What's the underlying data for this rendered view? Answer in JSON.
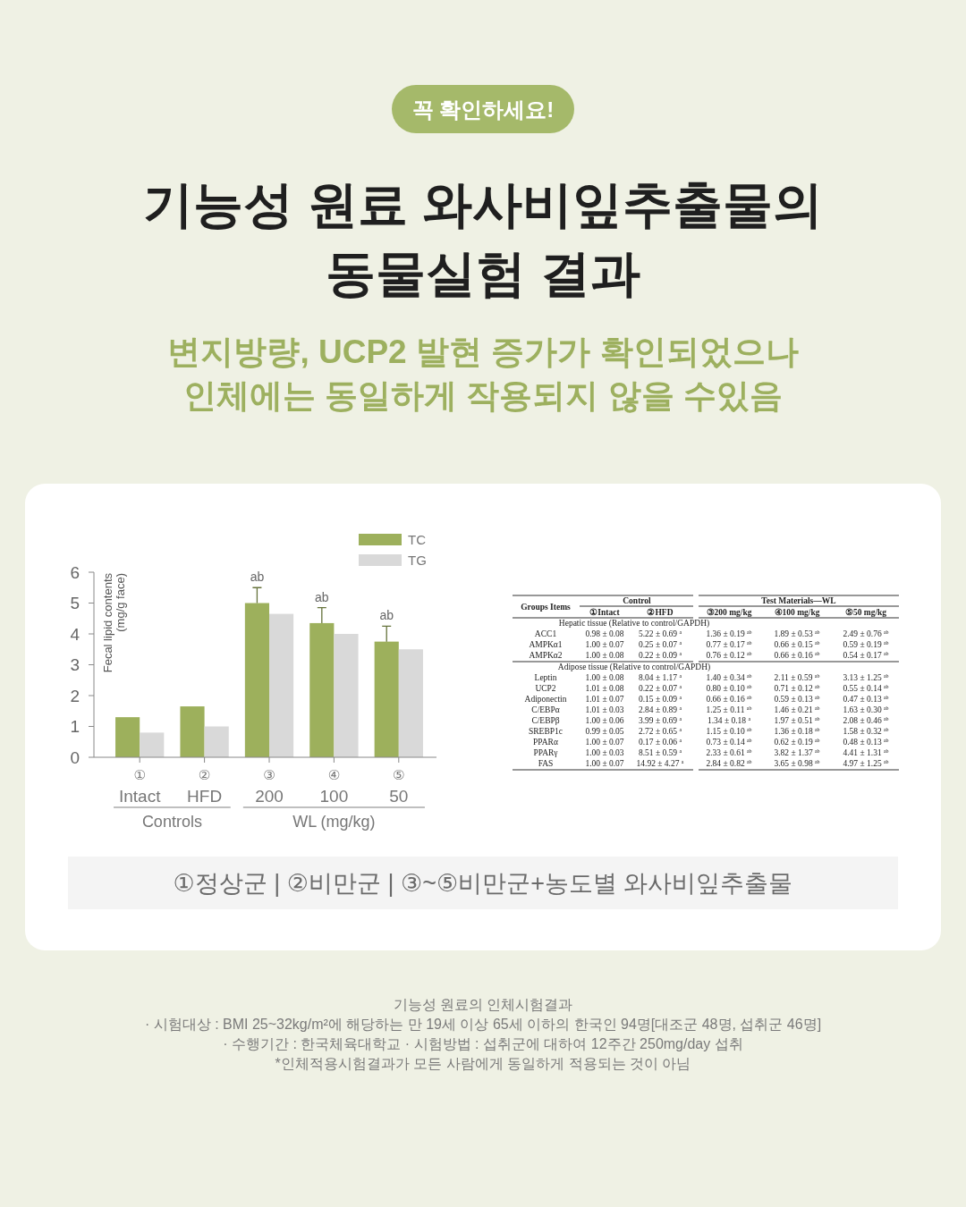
{
  "chart_data": [
    {
      "type": "bar",
      "title": "기능성 원료 와사비잎추출물의\n동물실험 결과",
      "subtitle": "변지방량, UCP2 발현 증가가 확인되었으나\n인체에는 동일하게 작용되지 않을 수있음",
      "ylabel": "Fecal lipid contents\n(mg/g face)",
      "categories": [
        "①\nIntact",
        "②\nHFD",
        "③\n200",
        "④\n100",
        "⑤\n50"
      ],
      "series": [
        {
          "name": "TC",
          "color": "#9db05c",
          "values": [
            1.3,
            1.65,
            5.0,
            4.35,
            3.75
          ],
          "errors": [
            null,
            null,
            [
              5.0,
              5.5
            ],
            [
              4.35,
              4.85
            ],
            [
              3.75,
              4.25
            ]
          ]
        },
        {
          "name": "TG",
          "color": "#d9d9d9",
          "values": [
            0.8,
            1.0,
            4.65,
            4.0,
            3.5
          ]
        }
      ],
      "ylim": [
        0,
        6
      ],
      "yticks": [
        0,
        1,
        2,
        3,
        4,
        5,
        6
      ],
      "legend": "top right",
      "annotations": [
        "꼭 확인하세요!",
        "Controls",
        "WL (mg/kg)",
        "①정상군 | ②비만군 | ③~⑤비만군+농도별 와사비잎추출물",
        "기능성 원료의 인체시험결과",
        "· 시험대상 : BMI 25~32kg/m²에 해당하는 만 19세 이상 65세 이하의 한국인 94명[대조군 48명, 섭취군 46명]",
        "· 수행기간 : 한국체육대학교 · 시험방법 : 섭취군에 대하여 12주간 250mg/day 섭취",
        "*인체적용시험결과가 모든 사람에게 동일하게 적용되는 것이 아님",
        "ab",
        "ab",
        "ab"
      ]
    },
    {
      "type": "other",
      "annotations": [
        "Groups Items",
        "Control",
        "Test Materials—WL",
        "①Intact",
        "②HFD",
        "③200 mg/kg",
        "④100 mg/kg",
        "⑤50 mg/kg",
        "Hepatic tissue (Relative to control/GAPDH)",
        "ACC1",
        "0.98 ± 0.08",
        "5.22 ± 0.69 $^{a}$",
        "1.36 ± 0.19 $^{ab}$",
        "1.89 ± 0.53 $^{ab}$",
        "2.49 ± 0.76 $^{ab}$",
        "AMPKα1",
        "1.00 ± 0.07",
        "0.25 ± 0.07 $^{a}$",
        "0.77 ± 0.17 $^{ab}$",
        "0.66 ± 0.15 $^{ab}$",
        "0.59 ± 0.19 $^{ab}$",
        "AMPKα2",
        "1.00 ± 0.08",
        "0.22 ± 0.09 $^{a}$",
        "0.76 ± 0.12 $^{ab}$",
        "0.66 ± 0.16 $^{ab}$",
        "0.54 ± 0.17 $^{ab}$",
        "Adipose tissue (Relative to control/GAPDH)",
        "Leptin",
        "1.00 ± 0.08",
        "8.04 ± 1.17 $^{a}$",
        "1.40 ± 0.34 $^{ab}$",
        "2.11 ± 0.59 $^{ab}$",
        "3.13 ± 1.25 $^{ab}$",
        "UCP2",
        "1.01 ± 0.08",
        "0.22 ± 0.07 $^{a}$",
        "0.80 ± 0.10 $^{ab}$",
        "0.71 ± 0.12 $^{ab}$",
        "0.55 ± 0.14 $^{ab}$",
        "Adiponectin",
        "1.01 ± 0.07",
        "0.15 ± 0.09 $^{a}$",
        "0.66 ± 0.16 $^{ab}$",
        "0.59 ± 0.13 $^{ab}$",
        "0.47 ± 0.13 $^{ab}$",
        "C/EBPα",
        "1.01 ± 0.03",
        "2.84 ± 0.89 $^{a}$",
        "1.25 ± 0.11 $^{ab}$",
        "1.46 ± 0.21 $^{ab}$",
        "1.63 ± 0.30 $^{ab}$",
        "C/EBPβ",
        "1.00 ± 0.06",
        "3.99 ± 0.69 $^{a}$",
        "1.34 ± 0.18 $^{a}$",
        "1.97 ± 0.51 $^{ab}$",
        "2.08 ± 0.46 $^{ab}$",
        "SREBP1c",
        "0.99 ± 0.05",
        "2.72 ± 0.65 $^{a}$",
        "1.15 ± 0.10 $^{ab}$",
        "1.36 ± 0.18 $^{ab}$",
        "1.58 ± 0.32 $^{ab}$",
        "PPARα",
        "1.00 ± 0.07",
        "0.17 ± 0.06 $^{a}$",
        "0.73 ± 0.14 $^{ab}$",
        "0.62 ± 0.19 $^{ab}$",
        "0.48 ± 0.13 $^{ab}$",
        "PPARγ",
        "1.00 ± 0.03",
        "8.51 ± 0.59 $^{a}$",
        "2.33 ± 0.61 $^{ab}$",
        "3.82 ± 1.37 $^{ab}$",
        "4.41 ± 1.31 $^{ab}$",
        "FAS",
        "1.00 ± 0.07",
        "14.92 ± 4.27 $^{a}$",
        "2.84 ± 0.82 $^{ab}$",
        "3.65 ± 0.98 $^{ab}$",
        "4.97 ± 1.25 $^{ab}$"
      ]
    }
  ]
}
